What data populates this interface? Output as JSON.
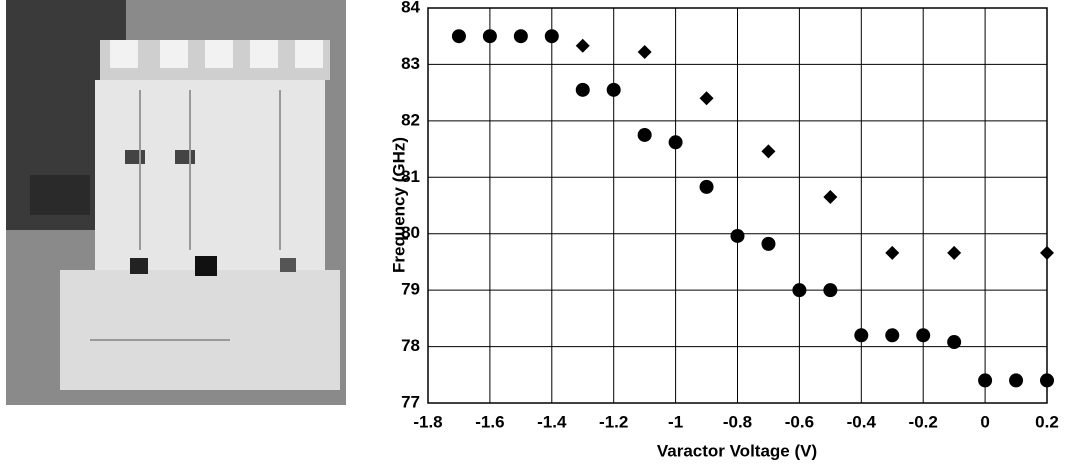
{
  "chart_data": {
    "type": "scatter",
    "xlabel": "Varactor Voltage (V)",
    "ylabel": "Frequency (GHz)",
    "xlim": [
      -1.8,
      0.2
    ],
    "ylim": [
      77,
      84
    ],
    "xticks": [
      -1.8,
      -1.6,
      -1.4,
      -1.2,
      -1,
      -0.8,
      -0.6,
      -0.4,
      -0.2,
      0,
      0.2
    ],
    "yticks": [
      77,
      78,
      79,
      80,
      81,
      82,
      83,
      84
    ],
    "grid": true,
    "series": [
      {
        "marker": "circle",
        "color": "#000000",
        "x": [
          -1.7,
          -1.6,
          -1.5,
          -1.4,
          -1.3,
          -1.2,
          -1.1,
          -1,
          -0.9,
          -0.8,
          -0.7,
          -0.6,
          -0.5,
          -0.4,
          -0.3,
          -0.2,
          -0.1,
          0,
          0.1,
          0.2
        ],
        "values": [
          83.5,
          83.5,
          83.5,
          83.5,
          82.55,
          82.55,
          81.75,
          81.62,
          80.83,
          79.96,
          79.82,
          79.0,
          79.0,
          78.2,
          78.2,
          78.2,
          78.08,
          77.4,
          77.4,
          77.4
        ]
      },
      {
        "marker": "diamond",
        "color": "#000000",
        "x": [
          -1.3,
          -1.1,
          -0.9,
          -0.7,
          -0.5,
          -0.3,
          -0.1,
          0.2
        ],
        "values": [
          83.33,
          83.22,
          82.4,
          81.46,
          80.65,
          79.66,
          79.66,
          79.66
        ]
      }
    ]
  }
}
